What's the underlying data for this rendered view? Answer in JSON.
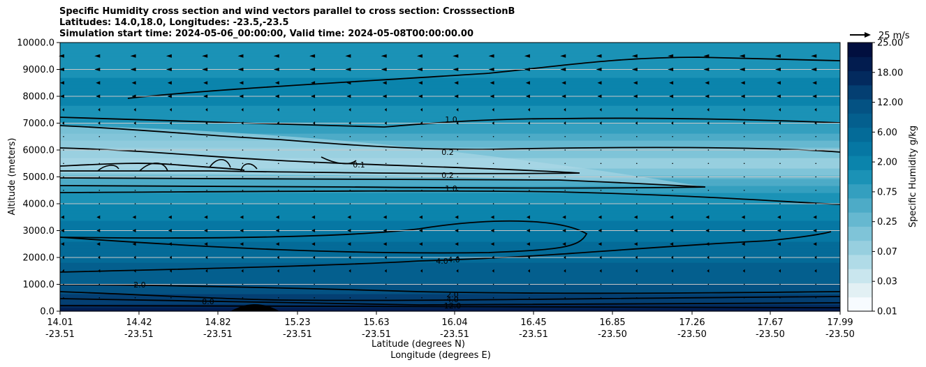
{
  "chart_data": {
    "type": "heatmap",
    "title_lines": [
      "Specific Humidity cross section and wind vectors parallel to cross section: CrosssectionB",
      "Latitudes: 14.0,18.0, Longitudes: -23.5,-23.5",
      "Simulation start time: 2024-05-06_00:00:00, Valid time: 2024-05-08T00:00:00.00"
    ],
    "ylabel": "Altitude (meters)",
    "xlabel_lat": "Latitude (degrees N)",
    "xlabel_lon": "Longitude (degrees E)",
    "ylim": [
      0,
      10000
    ],
    "y_ticks": [
      "0.0",
      "1000.0",
      "2000.0",
      "3000.0",
      "4000.0",
      "5000.0",
      "6000.0",
      "7000.0",
      "8000.0",
      "9000.0",
      "10000.0"
    ],
    "x_ticks": [
      {
        "lat": "14.01",
        "lon": "-23.51"
      },
      {
        "lat": "14.42",
        "lon": "-23.51"
      },
      {
        "lat": "14.82",
        "lon": "-23.51"
      },
      {
        "lat": "15.23",
        "lon": "-23.51"
      },
      {
        "lat": "15.63",
        "lon": "-23.51"
      },
      {
        "lat": "16.04",
        "lon": "-23.51"
      },
      {
        "lat": "16.45",
        "lon": "-23.51"
      },
      {
        "lat": "16.85",
        "lon": "-23.50"
      },
      {
        "lat": "17.26",
        "lon": "-23.50"
      },
      {
        "lat": "17.67",
        "lon": "-23.50"
      },
      {
        "lat": "17.99",
        "lon": "-23.50"
      }
    ],
    "colorbar": {
      "label": "Specific Humidity g/kg",
      "tick_labels": [
        "0.01",
        "0.03",
        "0.07",
        "0.25",
        "0.75",
        "2.00",
        "6.00",
        "12.00",
        "18.00",
        "25.00"
      ]
    },
    "quiver_key": "25 m/s",
    "contour_labels": [
      "1.0",
      "0.2",
      "0.1",
      "0.2",
      "1.0",
      "4.0",
      "4.0",
      "2.0",
      "4.0",
      "12.0",
      "2.0",
      "8.0"
    ],
    "grid": "horizontal",
    "colors": {
      "levels": [
        "#f7fbff",
        "#e2f0f4",
        "#c9e6ee",
        "#b0dbe7",
        "#97cfdf",
        "#7fc4d8",
        "#66b8d0",
        "#4dabc7",
        "#349fbf",
        "#1b92b6",
        "#0b84ac",
        "#0677a3",
        "#046b98",
        "#045f8e",
        "#045283",
        "#043f72",
        "#032a5e",
        "#021c4f",
        "#010f3f"
      ]
    }
  }
}
